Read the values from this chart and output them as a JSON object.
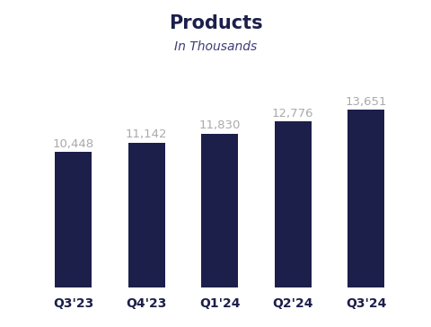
{
  "title": "Products",
  "subtitle": "In Thousands",
  "categories": [
    "Q3'23",
    "Q4'23",
    "Q1'24",
    "Q2'24",
    "Q3'24"
  ],
  "values": [
    10448,
    11142,
    11830,
    12776,
    13651
  ],
  "labels": [
    "10,448",
    "11,142",
    "11,830",
    "12,776",
    "13,651"
  ],
  "bar_color": "#1c1f4a",
  "background_color": "#ffffff",
  "title_color": "#1c1f4a",
  "subtitle_color": "#3d3d7a",
  "label_color": "#aaaaaa",
  "xlabel_color": "#1c1f4a",
  "title_fontsize": 15,
  "subtitle_fontsize": 10,
  "label_fontsize": 9.5,
  "xlabel_fontsize": 10,
  "bar_width": 0.5,
  "ylim": [
    0,
    15800
  ]
}
